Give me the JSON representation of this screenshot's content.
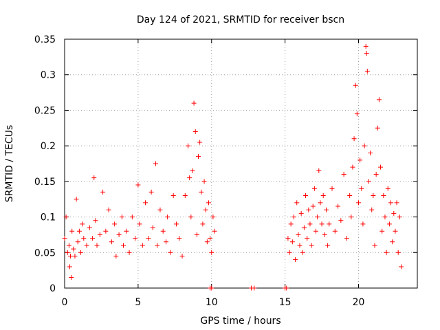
{
  "chart_data": {
    "type": "scatter",
    "title": "Day 124 of 2021, SRMTID for receiver bscn",
    "xlabel": "GPS time / hours",
    "ylabel": "SRMTID / TECUs",
    "xlim": [
      0,
      24
    ],
    "ylim": [
      0,
      0.35
    ],
    "x_ticks": [
      0,
      5,
      10,
      15,
      20
    ],
    "x_tick_labels": [
      "0",
      "5",
      "10",
      "15",
      "20"
    ],
    "y_ticks": [
      0,
      0.05,
      0.1,
      0.15,
      0.2,
      0.25,
      0.3,
      0.35
    ],
    "y_tick_labels": [
      "0",
      "0.05",
      "0.1",
      "0.15",
      "0.2",
      "0.25",
      "0.3",
      "0.35"
    ],
    "grid": true,
    "marker": "+",
    "color": "#ff0000",
    "series": [
      {
        "name": "SRMTID",
        "points": [
          [
            0.0,
            0.07
          ],
          [
            0.1,
            0.1
          ],
          [
            0.2,
            0.05
          ],
          [
            0.3,
            0.06
          ],
          [
            0.35,
            0.03
          ],
          [
            0.4,
            0.045
          ],
          [
            0.45,
            0.015
          ],
          [
            0.5,
            0.08
          ],
          [
            0.6,
            0.055
          ],
          [
            0.7,
            0.045
          ],
          [
            0.8,
            0.125
          ],
          [
            0.9,
            0.065
          ],
          [
            1.0,
            0.08
          ],
          [
            1.1,
            0.05
          ],
          [
            1.2,
            0.09
          ],
          [
            1.3,
            0.07
          ],
          [
            1.5,
            0.06
          ],
          [
            1.7,
            0.085
          ],
          [
            1.9,
            0.07
          ],
          [
            2.0,
            0.155
          ],
          [
            2.1,
            0.095
          ],
          [
            2.2,
            0.06
          ],
          [
            2.4,
            0.075
          ],
          [
            2.6,
            0.135
          ],
          [
            2.8,
            0.08
          ],
          [
            3.0,
            0.11
          ],
          [
            3.2,
            0.065
          ],
          [
            3.4,
            0.09
          ],
          [
            3.5,
            0.045
          ],
          [
            3.7,
            0.075
          ],
          [
            3.9,
            0.1
          ],
          [
            4.0,
            0.06
          ],
          [
            4.2,
            0.08
          ],
          [
            4.4,
            0.05
          ],
          [
            4.6,
            0.1
          ],
          [
            4.8,
            0.07
          ],
          [
            5.0,
            0.145
          ],
          [
            5.1,
            0.09
          ],
          [
            5.3,
            0.06
          ],
          [
            5.5,
            0.12
          ],
          [
            5.7,
            0.07
          ],
          [
            5.9,
            0.135
          ],
          [
            6.0,
            0.085
          ],
          [
            6.2,
            0.175
          ],
          [
            6.3,
            0.06
          ],
          [
            6.5,
            0.11
          ],
          [
            6.7,
            0.08
          ],
          [
            6.9,
            0.065
          ],
          [
            7.0,
            0.1
          ],
          [
            7.2,
            0.05
          ],
          [
            7.4,
            0.13
          ],
          [
            7.6,
            0.09
          ],
          [
            7.8,
            0.07
          ],
          [
            8.0,
            0.045
          ],
          [
            8.2,
            0.13
          ],
          [
            8.4,
            0.2
          ],
          [
            8.5,
            0.155
          ],
          [
            8.6,
            0.1
          ],
          [
            8.7,
            0.165
          ],
          [
            8.8,
            0.26
          ],
          [
            8.9,
            0.22
          ],
          [
            9.0,
            0.075
          ],
          [
            9.1,
            0.185
          ],
          [
            9.2,
            0.205
          ],
          [
            9.3,
            0.135
          ],
          [
            9.4,
            0.09
          ],
          [
            9.5,
            0.15
          ],
          [
            9.6,
            0.11
          ],
          [
            9.7,
            0.065
          ],
          [
            9.8,
            0.12
          ],
          [
            9.9,
            0.07
          ],
          [
            10.0,
            0.05
          ],
          [
            10.1,
            0.1
          ],
          [
            10.2,
            0.08
          ],
          [
            9.9,
            0.0
          ],
          [
            10.0,
            0.0
          ],
          [
            12.7,
            0.0
          ],
          [
            12.9,
            0.0
          ],
          [
            15.0,
            0.0
          ],
          [
            15.1,
            0.0
          ],
          [
            15.2,
            0.07
          ],
          [
            15.3,
            0.05
          ],
          [
            15.4,
            0.09
          ],
          [
            15.5,
            0.065
          ],
          [
            15.6,
            0.1
          ],
          [
            15.7,
            0.04
          ],
          [
            15.8,
            0.12
          ],
          [
            15.9,
            0.075
          ],
          [
            16.0,
            0.06
          ],
          [
            16.1,
            0.105
          ],
          [
            16.2,
            0.05
          ],
          [
            16.3,
            0.085
          ],
          [
            16.4,
            0.13
          ],
          [
            16.5,
            0.07
          ],
          [
            16.6,
            0.11
          ],
          [
            16.7,
            0.09
          ],
          [
            16.8,
            0.06
          ],
          [
            16.9,
            0.115
          ],
          [
            17.0,
            0.14
          ],
          [
            17.1,
            0.08
          ],
          [
            17.2,
            0.1
          ],
          [
            17.3,
            0.165
          ],
          [
            17.4,
            0.12
          ],
          [
            17.5,
            0.09
          ],
          [
            17.6,
            0.13
          ],
          [
            17.7,
            0.075
          ],
          [
            17.8,
            0.11
          ],
          [
            17.9,
            0.06
          ],
          [
            18.0,
            0.09
          ],
          [
            18.2,
            0.14
          ],
          [
            18.4,
            0.08
          ],
          [
            18.6,
            0.115
          ],
          [
            18.8,
            0.095
          ],
          [
            19.0,
            0.16
          ],
          [
            19.2,
            0.07
          ],
          [
            19.4,
            0.13
          ],
          [
            19.5,
            0.1
          ],
          [
            19.6,
            0.17
          ],
          [
            19.7,
            0.21
          ],
          [
            19.8,
            0.285
          ],
          [
            19.9,
            0.245
          ],
          [
            20.0,
            0.12
          ],
          [
            20.1,
            0.18
          ],
          [
            20.2,
            0.14
          ],
          [
            20.3,
            0.09
          ],
          [
            20.4,
            0.2
          ],
          [
            20.5,
            0.34
          ],
          [
            20.55,
            0.33
          ],
          [
            20.6,
            0.305
          ],
          [
            20.7,
            0.15
          ],
          [
            20.8,
            0.19
          ],
          [
            20.9,
            0.11
          ],
          [
            21.0,
            0.13
          ],
          [
            21.1,
            0.06
          ],
          [
            21.2,
            0.16
          ],
          [
            21.3,
            0.225
          ],
          [
            21.4,
            0.265
          ],
          [
            21.5,
            0.17
          ],
          [
            21.6,
            0.08
          ],
          [
            21.7,
            0.13
          ],
          [
            21.8,
            0.1
          ],
          [
            21.9,
            0.05
          ],
          [
            22.0,
            0.14
          ],
          [
            22.1,
            0.09
          ],
          [
            22.2,
            0.12
          ],
          [
            22.3,
            0.065
          ],
          [
            22.4,
            0.105
          ],
          [
            22.5,
            0.08
          ],
          [
            22.6,
            0.12
          ],
          [
            22.7,
            0.05
          ],
          [
            22.8,
            0.1
          ],
          [
            22.9,
            0.03
          ]
        ]
      }
    ]
  }
}
